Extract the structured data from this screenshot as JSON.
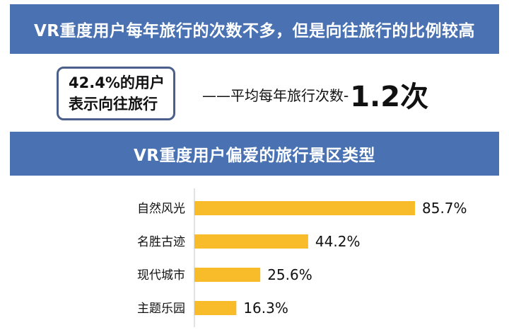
{
  "header": {
    "title": "VR重度用户每年旅行的次数不多，但是向往旅行的比例较高"
  },
  "stats": {
    "share_line1": "42.4%的用户",
    "share_line2": "表示向往旅行",
    "freq_label": "——平均每年旅行次数-",
    "freq_value": "1.2次"
  },
  "section": {
    "title": "VR重度用户偏爱的旅行景区类型"
  },
  "chart_data": {
    "type": "bar",
    "orientation": "horizontal",
    "categories": [
      "自然风光",
      "名胜古迹",
      "现代城市",
      "主题乐园"
    ],
    "values": [
      85.7,
      44.2,
      25.6,
      16.3
    ],
    "value_labels": [
      "85.7%",
      "44.2%",
      "25.6%",
      "16.3%"
    ],
    "bar_color": "#f8bc2a",
    "axis_color": "#d9d9d9",
    "xlim": [
      0,
      85.7
    ],
    "grid": false,
    "legend": false
  }
}
